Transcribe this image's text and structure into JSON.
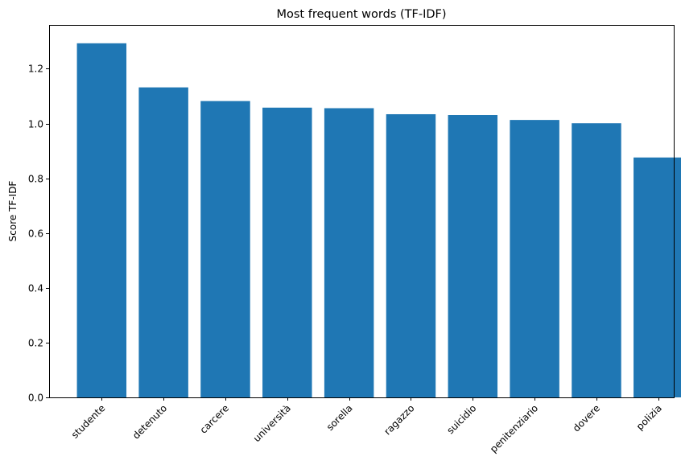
{
  "chart_data": {
    "type": "bar",
    "title": "Most frequent words (TF-IDF)",
    "xlabel": "",
    "ylabel": "Score TF-IDF",
    "categories": [
      "studente",
      "detenuto",
      "carcere",
      "università",
      "sorella",
      "ragazzo",
      "suicidio",
      "penitenziario",
      "dovere",
      "polizia"
    ],
    "values": [
      1.293,
      1.132,
      1.082,
      1.058,
      1.056,
      1.034,
      1.031,
      1.013,
      1.001,
      0.876
    ],
    "ylim": [
      0,
      1.36
    ],
    "yticks": [
      "0.0",
      "0.2",
      "0.4",
      "0.6",
      "0.8",
      "1.0",
      "1.2"
    ],
    "bar_color": "#1f77b4",
    "grid": false,
    "xtick_rotation": 45
  }
}
